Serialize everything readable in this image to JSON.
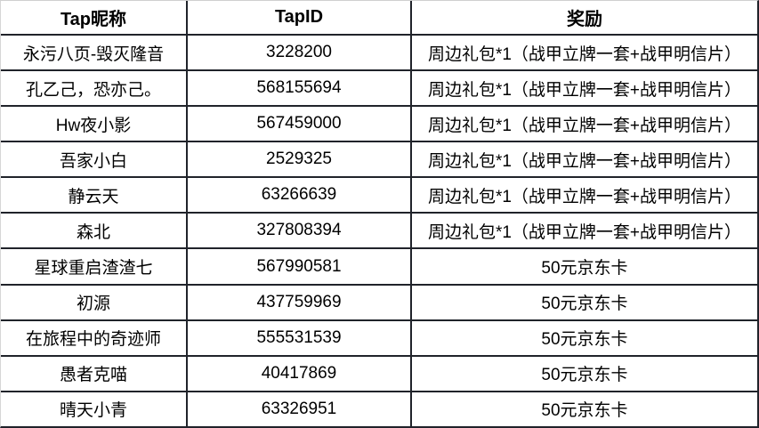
{
  "table": {
    "columns": [
      {
        "key": "nickname",
        "label": "Tap昵称"
      },
      {
        "key": "tap_id",
        "label": "TapID"
      },
      {
        "key": "reward",
        "label": "奖励"
      }
    ],
    "rows": [
      {
        "nickname": "永污八页-毁灭隆音",
        "tap_id": "3228200",
        "reward": "周边礼包*1（战甲立牌一套+战甲明信片）"
      },
      {
        "nickname": "孔乙己，恐亦己。",
        "tap_id": "568155694",
        "reward": "周边礼包*1（战甲立牌一套+战甲明信片）"
      },
      {
        "nickname": "Hw夜小影",
        "tap_id": "567459000",
        "reward": "周边礼包*1（战甲立牌一套+战甲明信片）"
      },
      {
        "nickname": "吾家小白",
        "tap_id": "2529325",
        "reward": "周边礼包*1（战甲立牌一套+战甲明信片）"
      },
      {
        "nickname": "静云天",
        "tap_id": "63266639",
        "reward": "周边礼包*1（战甲立牌一套+战甲明信片）"
      },
      {
        "nickname": "森北",
        "tap_id": "327808394",
        "reward": "周边礼包*1（战甲立牌一套+战甲明信片）"
      },
      {
        "nickname": "星球重启渣渣七",
        "tap_id": "567990581",
        "reward": "50元京东卡"
      },
      {
        "nickname": "初源",
        "tap_id": "437759969",
        "reward": "50元京东卡"
      },
      {
        "nickname": "在旅程中的奇迹师",
        "tap_id": "555531539",
        "reward": "50元京东卡"
      },
      {
        "nickname": "愚者克喵",
        "tap_id": "40417869",
        "reward": "50元京东卡"
      },
      {
        "nickname": "晴天小青",
        "tap_id": "63326951",
        "reward": "50元京东卡"
      }
    ]
  },
  "colors": {
    "border_dark": "#20232a",
    "border_light": "#d6d6d6",
    "background": "#ffffff",
    "text": "#000000"
  }
}
